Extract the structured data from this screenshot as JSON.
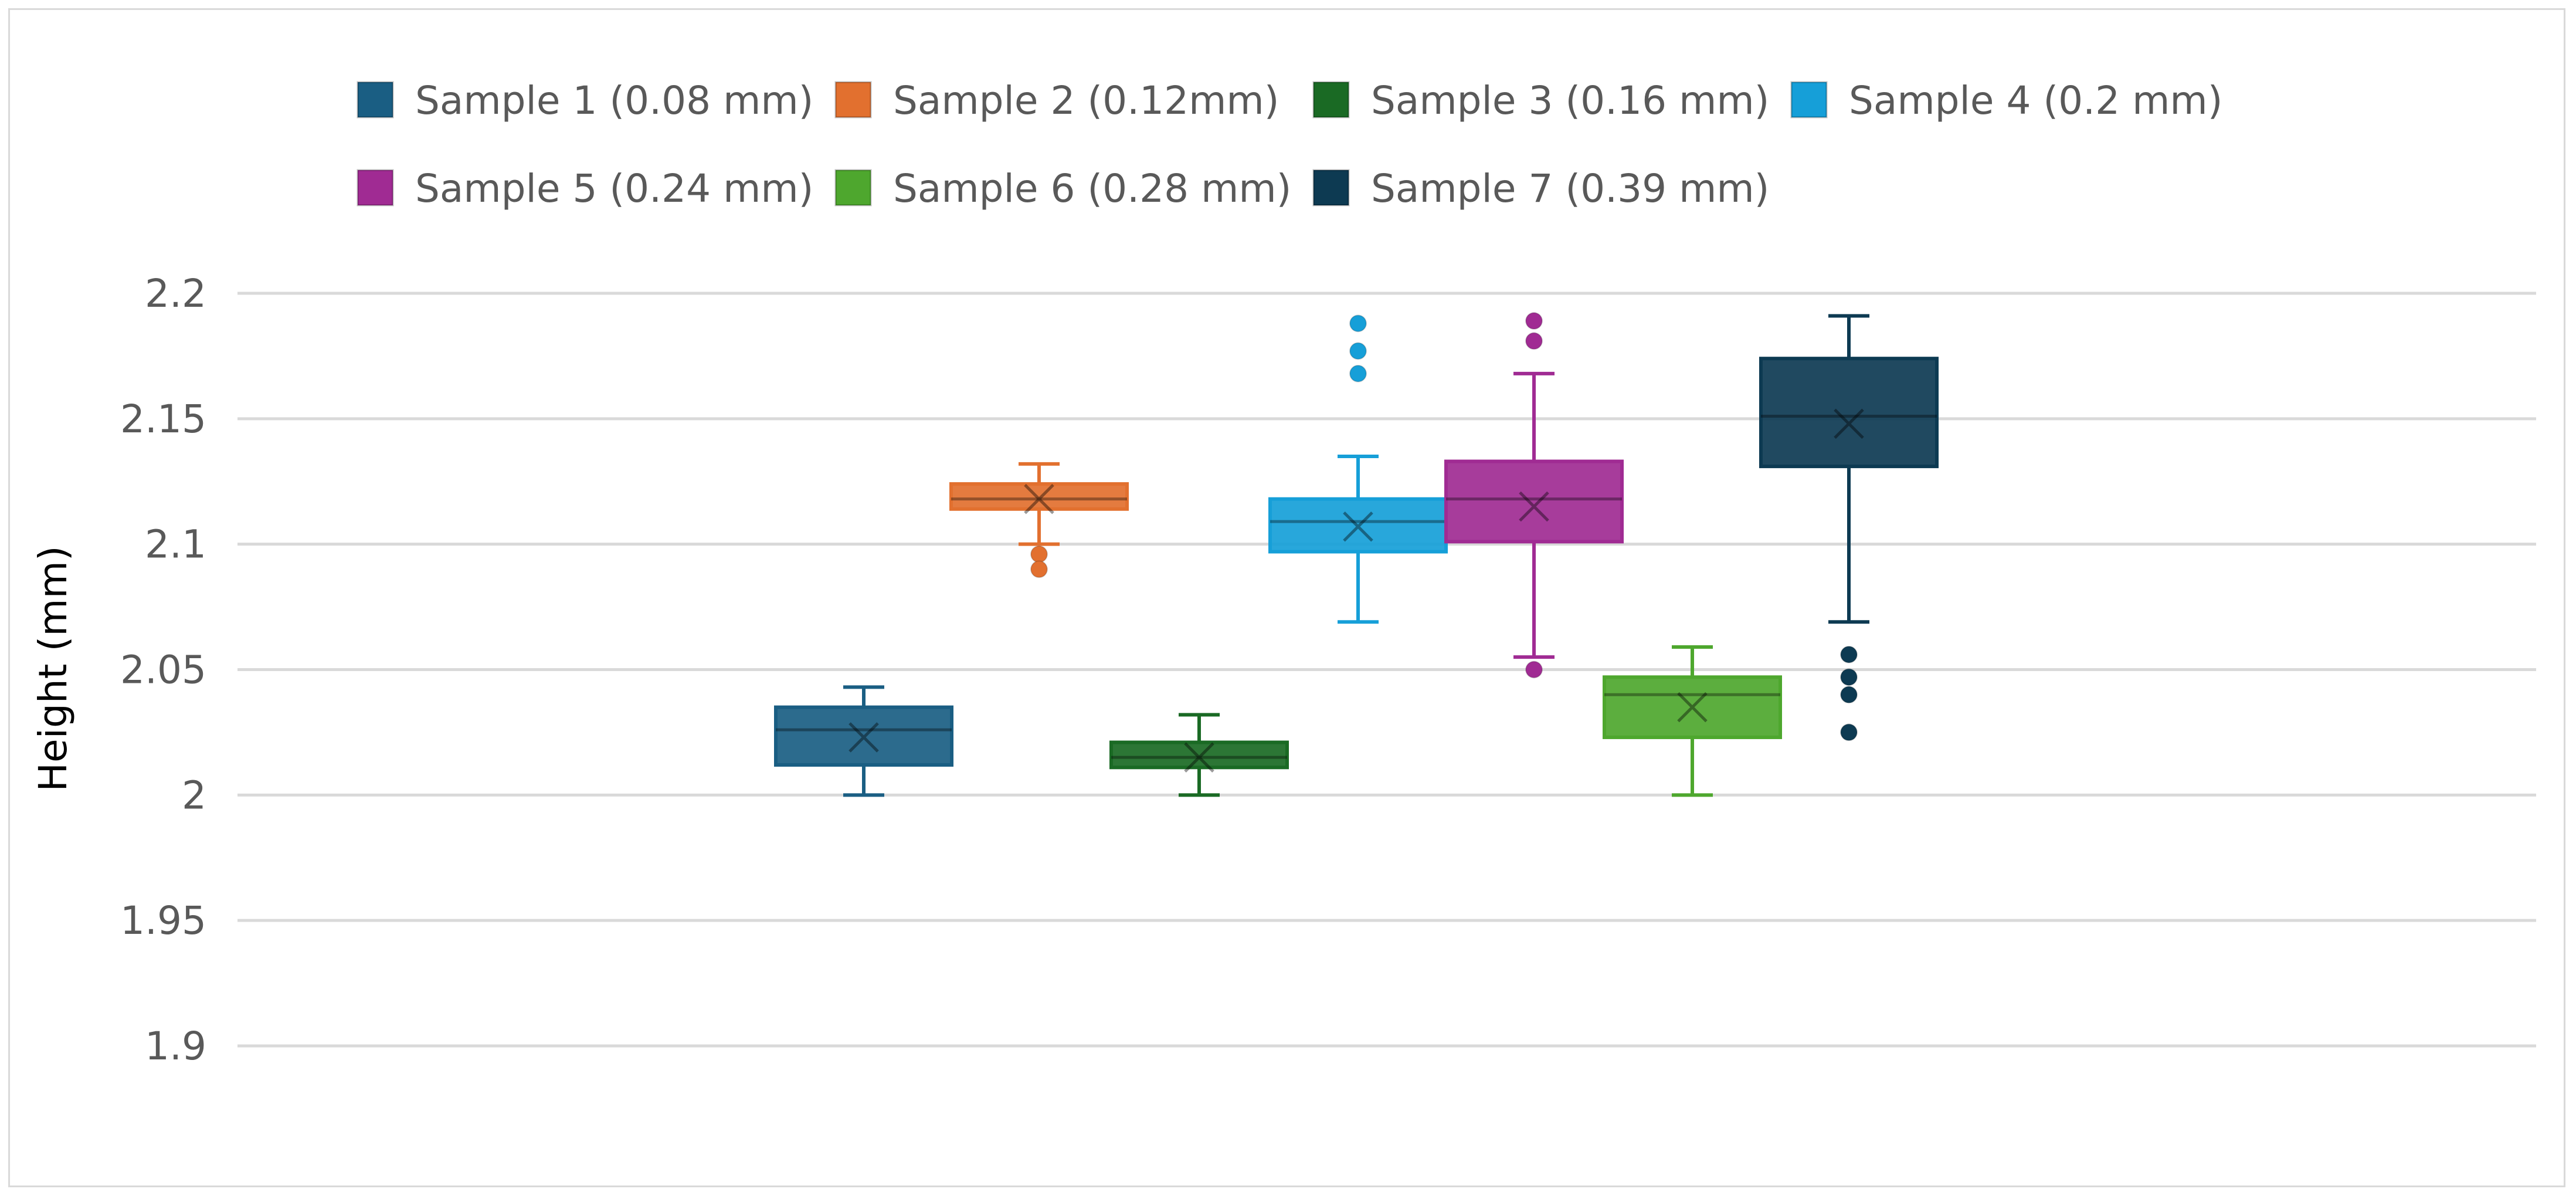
{
  "chart_data": {
    "type": "box",
    "title": "",
    "xlabel": "",
    "ylabel": "Height (mm)",
    "ylim": [
      1.9,
      2.2
    ],
    "yticks": [
      1.9,
      1.95,
      2,
      2.05,
      2.1,
      2.15,
      2.2
    ],
    "ytick_labels": [
      "1.9",
      "1.95",
      "2",
      "2.05",
      "2.1",
      "2.15",
      "2.2"
    ],
    "grid": true,
    "legend_position": "top",
    "series": [
      {
        "name": "Sample 1 (0.08 mm)",
        "color": "#1a5e83",
        "min": 2.0,
        "q1": 2.012,
        "median": 2.026,
        "q3": 2.035,
        "max": 2.043,
        "mean": 2.023,
        "outliers": []
      },
      {
        "name": "Sample 2 (0.12mm)",
        "color": "#e2702f",
        "min": 2.1,
        "q1": 2.114,
        "median": 2.118,
        "q3": 2.124,
        "max": 2.132,
        "mean": 2.118,
        "outliers": [
          2.096,
          2.09
        ]
      },
      {
        "name": "Sample 3 (0.16 mm)",
        "color": "#1a6a24",
        "min": 2.0,
        "q1": 2.011,
        "median": 2.015,
        "q3": 2.021,
        "max": 2.032,
        "mean": 2.015,
        "outliers": []
      },
      {
        "name": "Sample 4 (0.2 mm)",
        "color": "#169fd8",
        "min": 2.069,
        "q1": 2.097,
        "median": 2.109,
        "q3": 2.118,
        "max": 2.135,
        "mean": 2.107,
        "outliers": [
          2.188,
          2.177,
          2.168
        ]
      },
      {
        "name": "Sample 5 (0.24 mm)",
        "color": "#a02b93",
        "min": 2.055,
        "q1": 2.101,
        "median": 2.118,
        "q3": 2.133,
        "max": 2.168,
        "mean": 2.115,
        "outliers": [
          2.189,
          2.181,
          2.05
        ]
      },
      {
        "name": "Sample 6 (0.28 mm)",
        "color": "#4ea72e",
        "min": 2.0,
        "q1": 2.023,
        "median": 2.04,
        "q3": 2.047,
        "max": 2.059,
        "mean": 2.035,
        "outliers": []
      },
      {
        "name": "Sample 7 (0.39 mm)",
        "color": "#0d3a52",
        "min": 2.069,
        "q1": 2.131,
        "median": 2.151,
        "q3": 2.174,
        "max": 2.191,
        "mean": 2.148,
        "outliers": [
          2.056,
          2.047,
          2.04,
          2.025
        ]
      }
    ]
  }
}
